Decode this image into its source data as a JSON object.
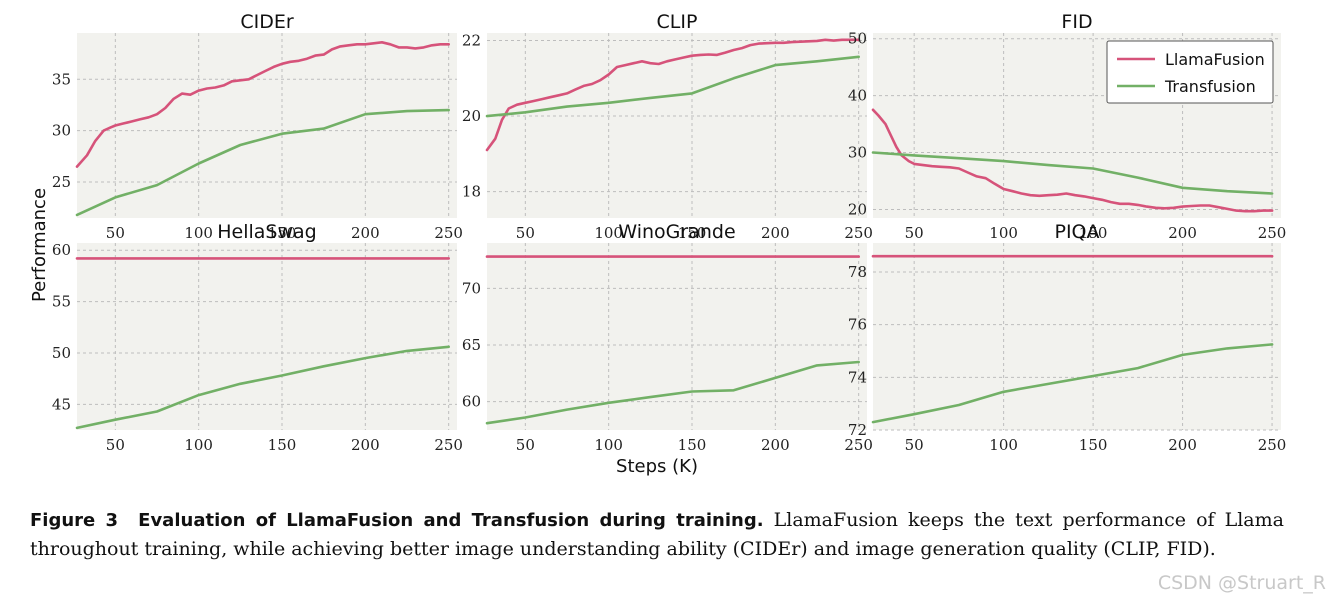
{
  "chart_data": [
    {
      "type": "line",
      "title": "CIDEr",
      "xlim": [
        27,
        255
      ],
      "ylim": [
        21.5,
        39.5
      ],
      "xticks": [
        50,
        100,
        150,
        200,
        250
      ],
      "yticks": [
        25,
        30,
        35
      ],
      "series": [
        {
          "name": "LlamaFusion",
          "color": "#d6537a",
          "x": [
            27,
            33,
            38,
            43,
            47,
            50,
            55,
            60,
            65,
            70,
            75,
            80,
            85,
            90,
            95,
            100,
            105,
            110,
            115,
            120,
            125,
            130,
            135,
            140,
            145,
            150,
            155,
            160,
            165,
            170,
            175,
            180,
            185,
            190,
            195,
            200,
            205,
            210,
            215,
            220,
            225,
            230,
            235,
            240,
            245,
            250
          ],
          "y": [
            26.5,
            27.6,
            29.0,
            30.0,
            30.3,
            30.5,
            30.7,
            30.9,
            31.1,
            31.3,
            31.6,
            32.2,
            33.1,
            33.6,
            33.5,
            33.9,
            34.1,
            34.2,
            34.4,
            34.8,
            34.9,
            35.0,
            35.4,
            35.8,
            36.2,
            36.5,
            36.7,
            36.8,
            37.0,
            37.3,
            37.4,
            37.9,
            38.2,
            38.3,
            38.4,
            38.4,
            38.5,
            38.6,
            38.4,
            38.1,
            38.1,
            38.0,
            38.1,
            38.3,
            38.4,
            38.4
          ]
        },
        {
          "name": "Transfusion",
          "color": "#72b066",
          "x": [
            27,
            50,
            75,
            100,
            125,
            150,
            175,
            200,
            225,
            250
          ],
          "y": [
            21.8,
            23.5,
            24.7,
            26.8,
            28.6,
            29.7,
            30.2,
            31.6,
            31.9,
            32.0
          ]
        }
      ]
    },
    {
      "type": "line",
      "title": "CLIP",
      "xlim": [
        27,
        255
      ],
      "ylim": [
        17.3,
        22.2
      ],
      "xticks": [
        50,
        100,
        150,
        200,
        250
      ],
      "yticks": [
        18,
        20,
        22
      ],
      "series": [
        {
          "name": "LlamaFusion",
          "color": "#d6537a",
          "x": [
            27,
            32,
            36,
            40,
            45,
            50,
            55,
            60,
            65,
            70,
            75,
            80,
            85,
            90,
            95,
            100,
            105,
            110,
            115,
            120,
            125,
            130,
            135,
            140,
            145,
            150,
            155,
            160,
            165,
            170,
            175,
            180,
            185,
            190,
            195,
            200,
            205,
            210,
            215,
            220,
            225,
            230,
            235,
            240,
            245,
            250
          ],
          "y": [
            19.1,
            19.4,
            19.9,
            20.2,
            20.3,
            20.35,
            20.4,
            20.45,
            20.5,
            20.55,
            20.6,
            20.7,
            20.8,
            20.85,
            20.95,
            21.1,
            21.3,
            21.35,
            21.4,
            21.45,
            21.4,
            21.38,
            21.45,
            21.5,
            21.55,
            21.6,
            21.62,
            21.63,
            21.62,
            21.68,
            21.75,
            21.8,
            21.88,
            21.92,
            21.93,
            21.94,
            21.94,
            21.96,
            21.97,
            21.98,
            21.99,
            22.02,
            22.0,
            22.02,
            22.02,
            22.02
          ]
        },
        {
          "name": "Transfusion",
          "color": "#72b066",
          "x": [
            27,
            50,
            75,
            100,
            125,
            150,
            175,
            200,
            225,
            250
          ],
          "y": [
            20.0,
            20.1,
            20.25,
            20.35,
            20.48,
            20.6,
            21.0,
            21.35,
            21.45,
            21.57
          ]
        }
      ]
    },
    {
      "type": "line",
      "title": "FID",
      "xlim": [
        27,
        255
      ],
      "ylim": [
        18.5,
        51
      ],
      "xticks": [
        50,
        100,
        150,
        200,
        250
      ],
      "yticks": [
        20,
        30,
        40,
        50
      ],
      "legend": {
        "placement": "top-right",
        "entries": [
          "LlamaFusion",
          "Transfusion"
        ]
      },
      "series": [
        {
          "name": "LlamaFusion",
          "color": "#d6537a",
          "x": [
            27,
            30,
            34,
            37,
            40,
            43,
            47,
            50,
            55,
            60,
            65,
            70,
            75,
            80,
            85,
            90,
            95,
            100,
            105,
            110,
            115,
            120,
            125,
            130,
            135,
            140,
            145,
            150,
            155,
            160,
            165,
            170,
            175,
            180,
            185,
            190,
            195,
            200,
            205,
            210,
            215,
            220,
            225,
            230,
            235,
            240,
            245,
            250
          ],
          "y": [
            37.5,
            36.5,
            35.0,
            33.0,
            31.0,
            29.5,
            28.5,
            28.0,
            27.8,
            27.6,
            27.5,
            27.4,
            27.2,
            26.5,
            25.8,
            25.5,
            24.5,
            23.6,
            23.2,
            22.8,
            22.5,
            22.4,
            22.5,
            22.6,
            22.8,
            22.5,
            22.3,
            22.0,
            21.7,
            21.3,
            21.0,
            21.0,
            20.8,
            20.5,
            20.3,
            20.2,
            20.3,
            20.5,
            20.6,
            20.7,
            20.7,
            20.4,
            20.1,
            19.8,
            19.7,
            19.7,
            19.8,
            19.8
          ]
        },
        {
          "name": "Transfusion",
          "color": "#72b066",
          "x": [
            27,
            50,
            75,
            100,
            125,
            150,
            175,
            200,
            225,
            250
          ],
          "y": [
            30.0,
            29.5,
            29.0,
            28.5,
            27.8,
            27.2,
            25.6,
            23.8,
            23.2,
            22.8
          ]
        }
      ]
    },
    {
      "type": "line",
      "title": "HellaSwag",
      "xlim": [
        27,
        255
      ],
      "ylim": [
        42.5,
        60.7
      ],
      "xticks": [
        50,
        100,
        150,
        200,
        250
      ],
      "yticks": [
        45,
        50,
        55,
        60
      ],
      "series": [
        {
          "name": "LlamaFusion",
          "color": "#d6537a",
          "x": [
            27,
            250
          ],
          "y": [
            59.2,
            59.2
          ]
        },
        {
          "name": "Transfusion",
          "color": "#72b066",
          "x": [
            27,
            50,
            75,
            100,
            125,
            150,
            175,
            200,
            225,
            250
          ],
          "y": [
            42.7,
            43.5,
            44.3,
            45.9,
            47.0,
            47.8,
            48.7,
            49.5,
            50.2,
            50.6
          ]
        }
      ]
    },
    {
      "type": "line",
      "title": "WinoGrande",
      "xlim": [
        27,
        255
      ],
      "ylim": [
        57.5,
        74.0
      ],
      "xticks": [
        50,
        100,
        150,
        200,
        250
      ],
      "yticks": [
        60,
        65,
        70
      ],
      "series": [
        {
          "name": "LlamaFusion",
          "color": "#d6537a",
          "x": [
            27,
            250
          ],
          "y": [
            72.8,
            72.8
          ]
        },
        {
          "name": "Transfusion",
          "color": "#72b066",
          "x": [
            27,
            50,
            75,
            100,
            125,
            150,
            175,
            200,
            225,
            250
          ],
          "y": [
            58.1,
            58.6,
            59.3,
            59.9,
            60.4,
            60.9,
            61.0,
            62.1,
            63.2,
            63.5
          ]
        }
      ]
    },
    {
      "type": "line",
      "title": "PIQA",
      "xlim": [
        27,
        255
      ],
      "ylim": [
        72.0,
        79.1
      ],
      "xticks": [
        50,
        100,
        150,
        200,
        250
      ],
      "yticks": [
        72,
        74,
        76,
        78
      ],
      "series": [
        {
          "name": "LlamaFusion",
          "color": "#d6537a",
          "x": [
            27,
            250
          ],
          "y": [
            78.6,
            78.6
          ]
        },
        {
          "name": "Transfusion",
          "color": "#72b066",
          "x": [
            27,
            50,
            75,
            100,
            125,
            150,
            175,
            200,
            225,
            250
          ],
          "y": [
            72.3,
            72.6,
            72.95,
            73.45,
            73.75,
            74.05,
            74.35,
            74.85,
            75.1,
            75.25
          ]
        }
      ]
    }
  ],
  "shared": {
    "ylabel": "Performance",
    "xlabel": "Steps (K)"
  },
  "caption": {
    "figure_label": "Figure 3",
    "bold_title": "Evaluation of LlamaFusion and Transfusion during training.",
    "text": "LlamaFusion keeps the text performance of Llama throughout training, while achieving better image understanding ability (CIDEr) and image generation quality (CLIP, FID)."
  },
  "watermark": "CSDN @Struart_R",
  "colors": {
    "panel_bg": "#f2f2ee",
    "grid": "#bdbdbd",
    "llamafusion": "#d6537a",
    "transfusion": "#72b066"
  }
}
